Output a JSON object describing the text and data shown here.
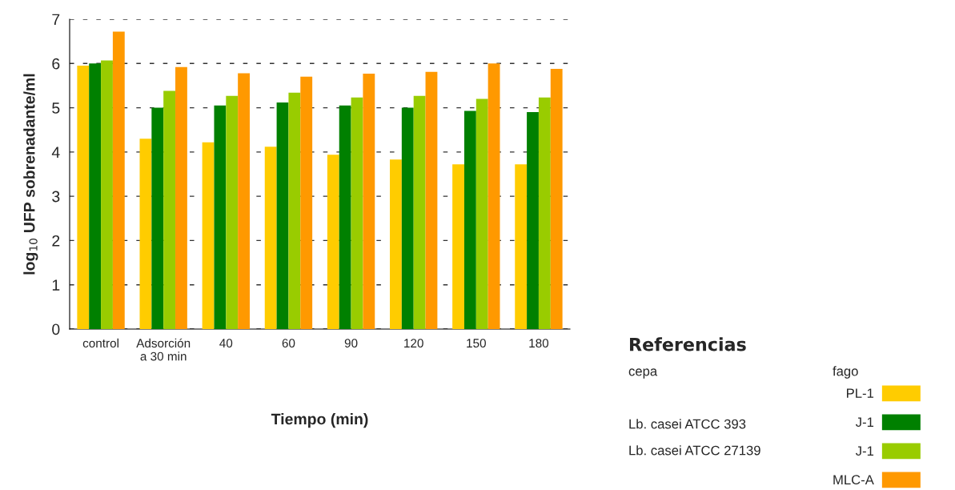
{
  "chart_data": {
    "type": "bar",
    "xlabel": "Tiempo (min)",
    "ylabel": "log$_{10}$ UFP sobrenadante/ml",
    "legend_title": "Referencias",
    "categories": [
      "control",
      "Adsorción\na 30 min",
      "40",
      "60",
      "90",
      "120",
      "150",
      "180"
    ],
    "series": [
      {
        "name": "PL-1",
        "color": "#ffcc00",
        "values": [
          5.95,
          4.3,
          4.22,
          4.12,
          3.94,
          3.83,
          3.72,
          3.72
        ]
      },
      {
        "name": "J-1",
        "color": "#008000",
        "values": [
          6.0,
          5.0,
          5.05,
          5.12,
          5.05,
          5.0,
          4.93,
          4.9
        ]
      },
      {
        "name": "J-1",
        "color": "#99cc00",
        "values": [
          6.07,
          5.38,
          5.27,
          5.34,
          5.23,
          5.27,
          5.2,
          5.23
        ]
      },
      {
        "name": "MLC-A",
        "color": "#ff9900",
        "values": [
          6.72,
          5.92,
          5.78,
          5.7,
          5.77,
          5.81,
          6.0,
          5.88
        ]
      }
    ],
    "ylim": [
      0,
      7
    ],
    "yticks": [
      0,
      1,
      2,
      3,
      4,
      5,
      6,
      7
    ],
    "grid": "y",
    "legend": "bottom right",
    "annotations": [
      "cepa",
      "fago",
      "Lb. casei ATCC 393",
      "Lb. casei ATCC 27139"
    ]
  }
}
